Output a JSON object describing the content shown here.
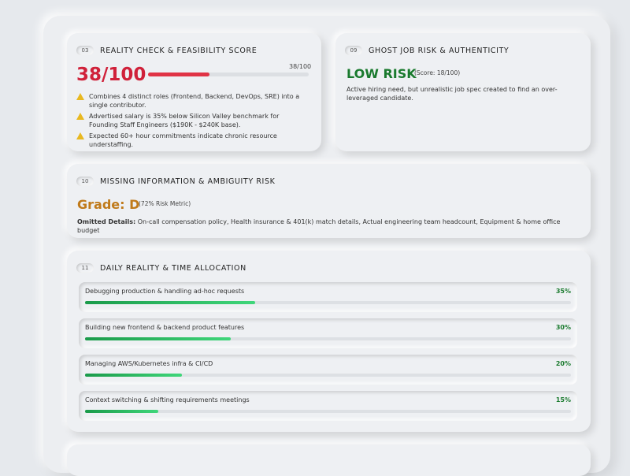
{
  "reality": {
    "num": "03",
    "title": "REALITY CHECK & FEASIBILITY SCORE",
    "score": {
      "value": 38,
      "label": "38/100"
    },
    "items": [
      "Combines 4 distinct roles (Frontend, Backend, DevOps, SRE) into a single contributor.",
      "Advertised salary is 35% below Silicon Valley benchmark for Founding Staff Engineers ($190K - $240K base).",
      "Expected 60+ hour commitments indicate chronic resource understaffing."
    ]
  },
  "ghost": {
    "num": "09",
    "title": "GHOST JOB RISK & AUTHENTICITY",
    "rating": "LOW RISK",
    "score": "(Score: 18/100)",
    "text": "Active hiring need, but unrealistic job spec created to find an over-leveraged candidate."
  },
  "missing": {
    "num": "10",
    "title": "MISSING INFORMATION & AMBIGUITY RISK",
    "grade": "Grade: D",
    "metric": "(72% Risk Metric)",
    "details_label": "Omitted Details:",
    "details": "On-call compensation policy, Health insurance & 401(k) match details, Actual engineering team headcount, Equipment & home office budget"
  },
  "daily": {
    "num": "11",
    "title": "DAILY REALITY & TIME ALLOCATION",
    "rows": [
      {
        "label": "Debugging production & handling ad-hoc requests",
        "percent": {
          "value": 35,
          "label": "35%"
        }
      },
      {
        "label": "Building new frontend & backend product features",
        "percent": {
          "value": 30,
          "label": "30%"
        }
      },
      {
        "label": "Managing AWS/Kubernetes infra & CI/CD",
        "percent": {
          "value": 20,
          "label": "20%"
        }
      },
      {
        "label": "Context switching & shifting requirements meetings",
        "percent": {
          "value": 15,
          "label": "15%"
        }
      }
    ]
  }
}
